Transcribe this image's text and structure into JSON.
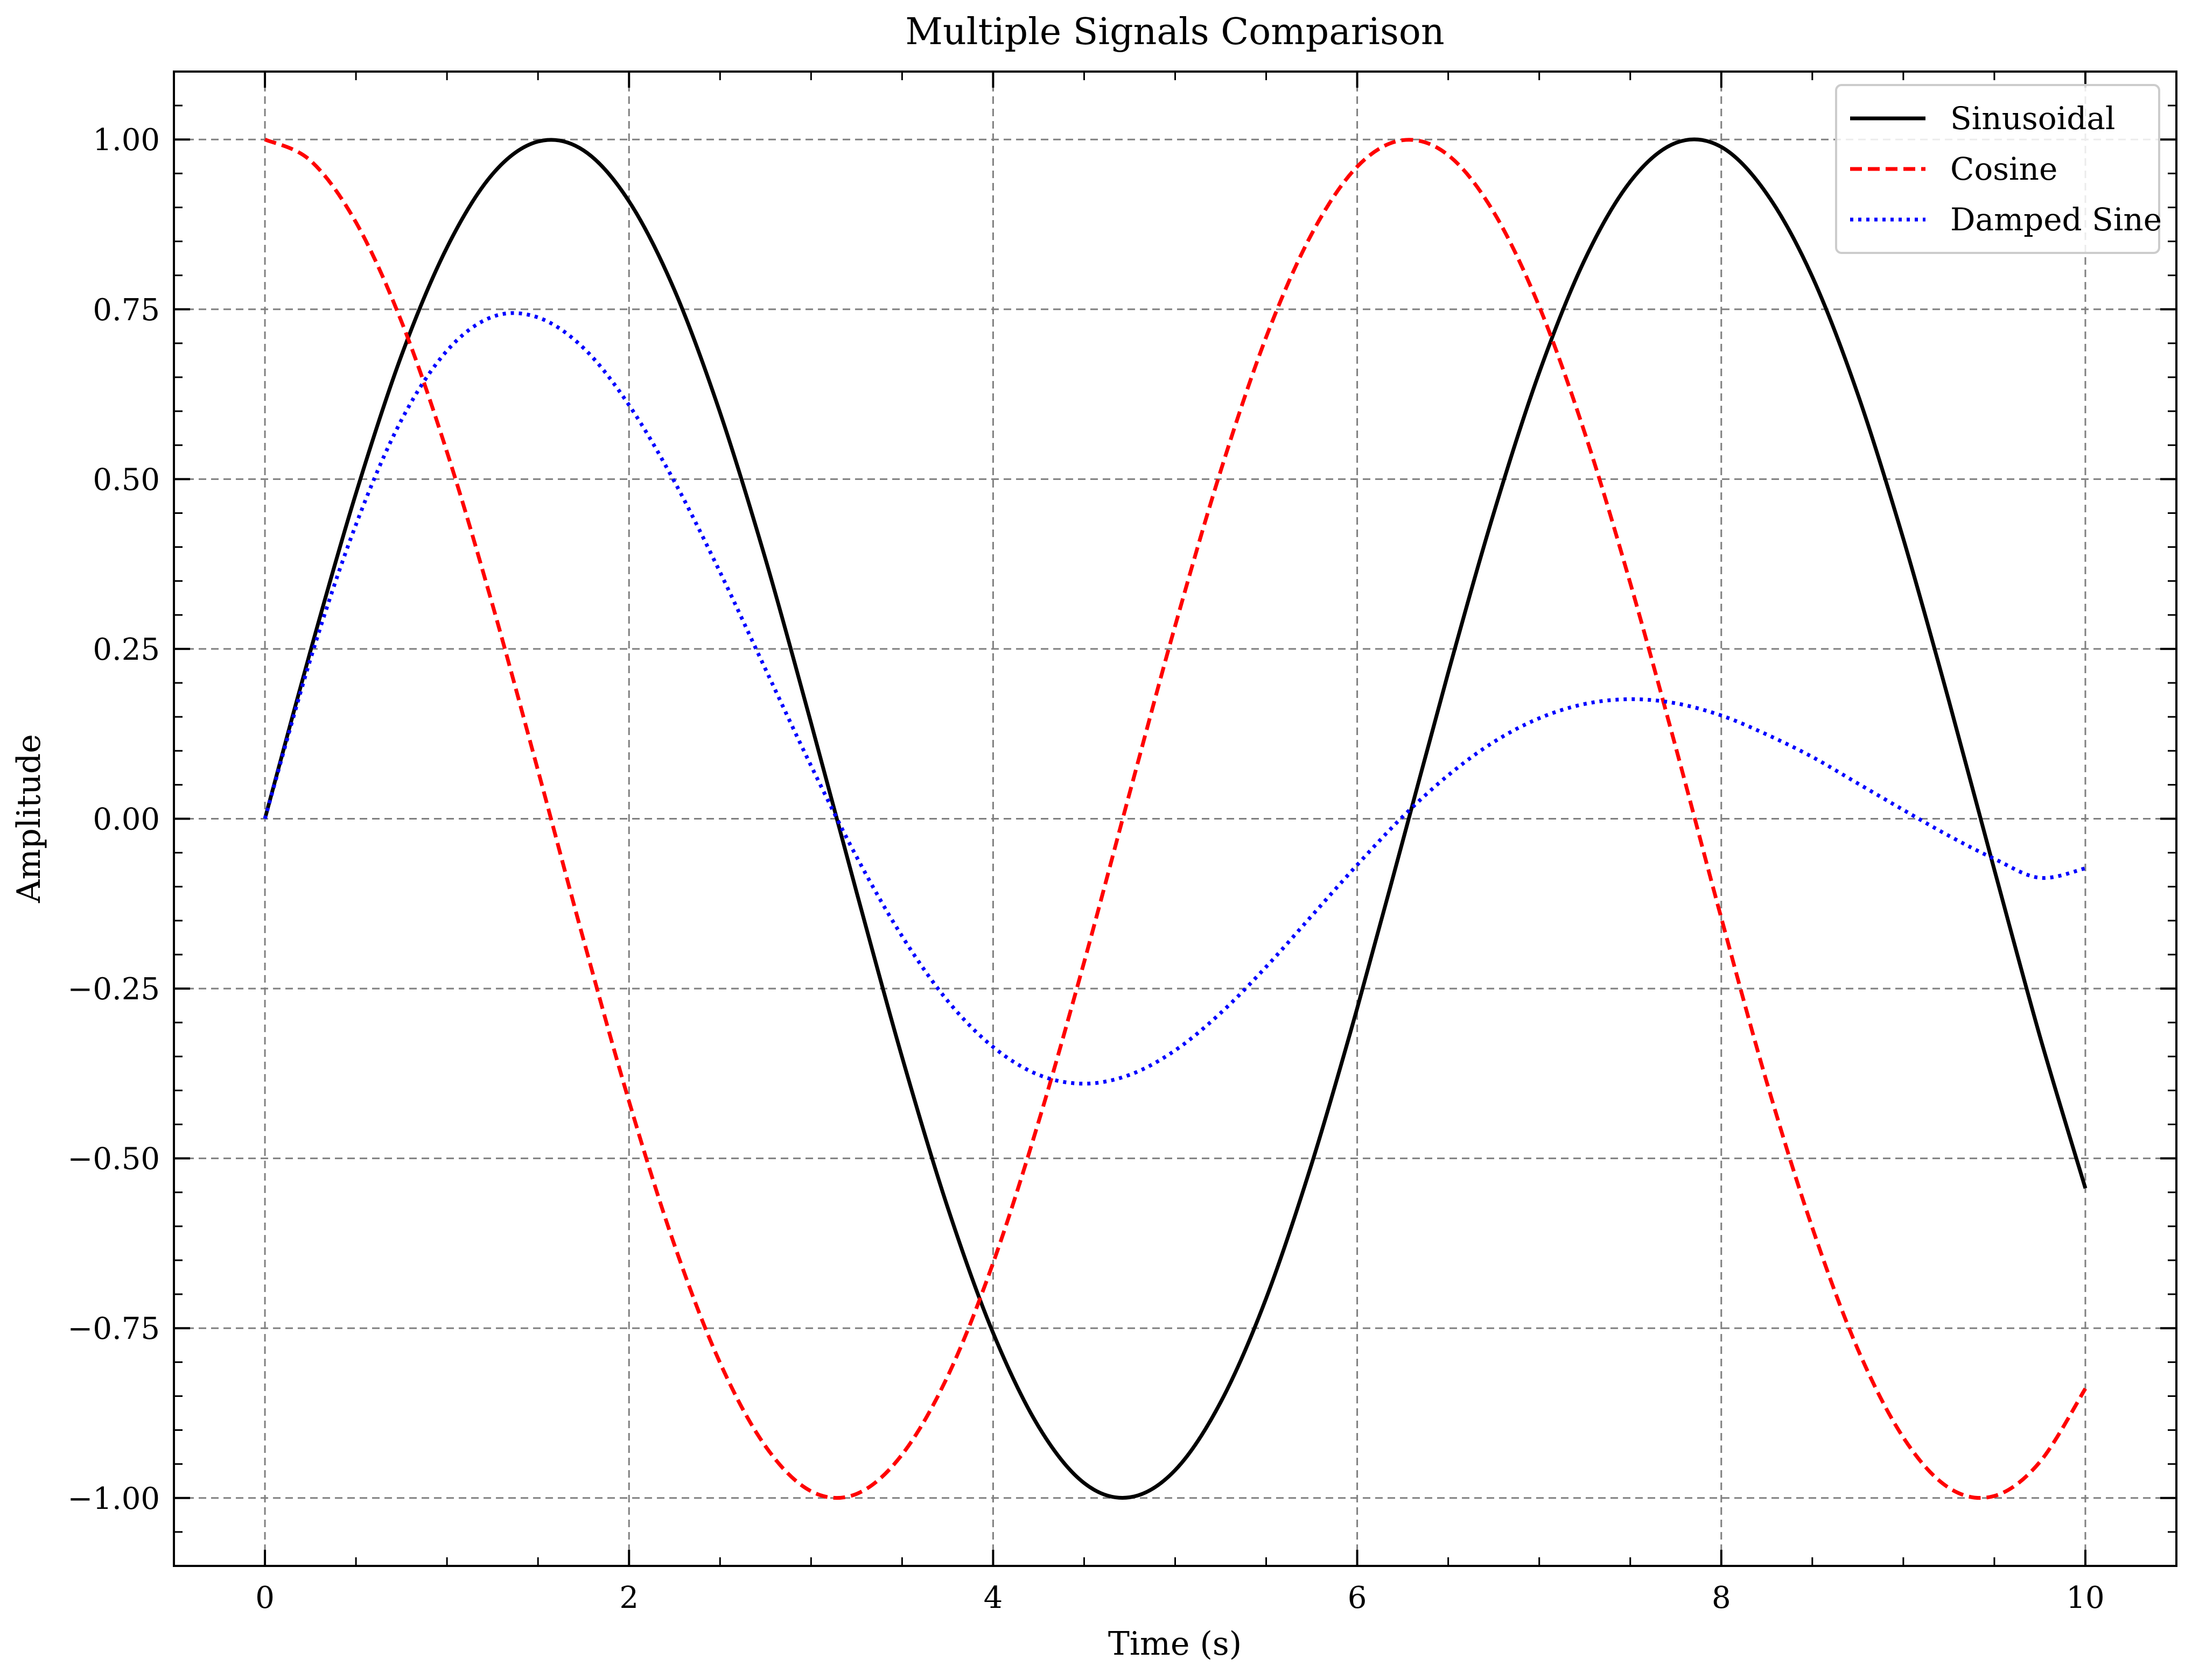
{
  "chart_data": {
    "type": "line",
    "title": "Multiple Signals Comparison",
    "xlabel": "Time (s)",
    "ylabel": "Amplitude",
    "xlim": [
      -0.5,
      10.5
    ],
    "ylim": [
      -1.1,
      1.1
    ],
    "x_ticks": [
      0,
      2,
      4,
      6,
      8,
      10
    ],
    "x_tick_labels": [
      "0",
      "2",
      "4",
      "6",
      "8",
      "10"
    ],
    "y_ticks": [
      1.0,
      0.75,
      0.5,
      0.25,
      0.0,
      -0.25,
      -0.5,
      -0.75,
      -1.0
    ],
    "y_tick_labels": [
      "1.00",
      "0.75",
      "0.50",
      "0.25",
      "0.00",
      "−0.25",
      "−0.50",
      "−0.75",
      "−1.00"
    ],
    "grid": true,
    "legend_position": "top-right",
    "x": [
      0,
      0.25,
      0.5,
      0.75,
      1,
      1.25,
      1.5,
      1.75,
      2,
      2.25,
      2.5,
      2.75,
      3,
      3.25,
      3.5,
      3.75,
      4,
      4.25,
      4.5,
      4.75,
      5,
      5.25,
      5.5,
      5.75,
      6,
      6.25,
      6.5,
      6.75,
      7,
      7.25,
      7.5,
      7.75,
      8,
      8.25,
      8.5,
      8.75,
      9,
      9.25,
      9.5,
      9.75,
      10
    ],
    "series": [
      {
        "name": "Sinusoidal",
        "color": "#000000",
        "style": "solid",
        "values": [
          0,
          0.247,
          0.479,
          0.682,
          0.841,
          0.949,
          0.997,
          0.984,
          0.909,
          0.778,
          0.598,
          0.382,
          0.141,
          -0.108,
          -0.351,
          -0.572,
          -0.757,
          -0.895,
          -0.978,
          -0.999,
          -0.959,
          -0.859,
          -0.706,
          -0.508,
          -0.279,
          -0.033,
          0.215,
          0.45,
          0.657,
          0.823,
          0.938,
          0.995,
          0.989,
          0.92,
          0.798,
          0.625,
          0.412,
          0.174,
          -0.075,
          -0.32,
          -0.544
        ]
      },
      {
        "name": "Cosine",
        "color": "#ff0000",
        "style": "dashed",
        "values": [
          1,
          0.969,
          0.878,
          0.732,
          0.54,
          0.315,
          0.071,
          -0.178,
          -0.416,
          -0.628,
          -0.801,
          -0.924,
          -0.99,
          -0.994,
          -0.936,
          -0.821,
          -0.654,
          -0.446,
          -0.211,
          0.038,
          0.284,
          0.512,
          0.709,
          0.861,
          0.96,
          0.999,
          0.977,
          0.893,
          0.754,
          0.568,
          0.347,
          0.105,
          -0.146,
          -0.388,
          -0.602,
          -0.781,
          -0.911,
          -0.985,
          -0.997,
          -0.947,
          -0.839
        ]
      },
      {
        "name": "Damped Sine",
        "color": "#0000ff",
        "style": "dotted",
        "values": [
          0,
          0.235,
          0.433,
          0.587,
          0.689,
          0.739,
          0.738,
          0.693,
          0.609,
          0.496,
          0.363,
          0.22,
          0.078,
          -0.056,
          -0.173,
          -0.268,
          -0.336,
          -0.377,
          -0.39,
          -0.377,
          -0.341,
          -0.286,
          -0.218,
          -0.143,
          -0.068,
          0.003,
          0.064,
          0.113,
          0.148,
          0.169,
          0.176,
          0.17,
          0.152,
          0.124,
          0.091,
          0.052,
          0.013,
          -0.025,
          -0.059,
          -0.087,
          -0.073
        ]
      }
    ]
  }
}
